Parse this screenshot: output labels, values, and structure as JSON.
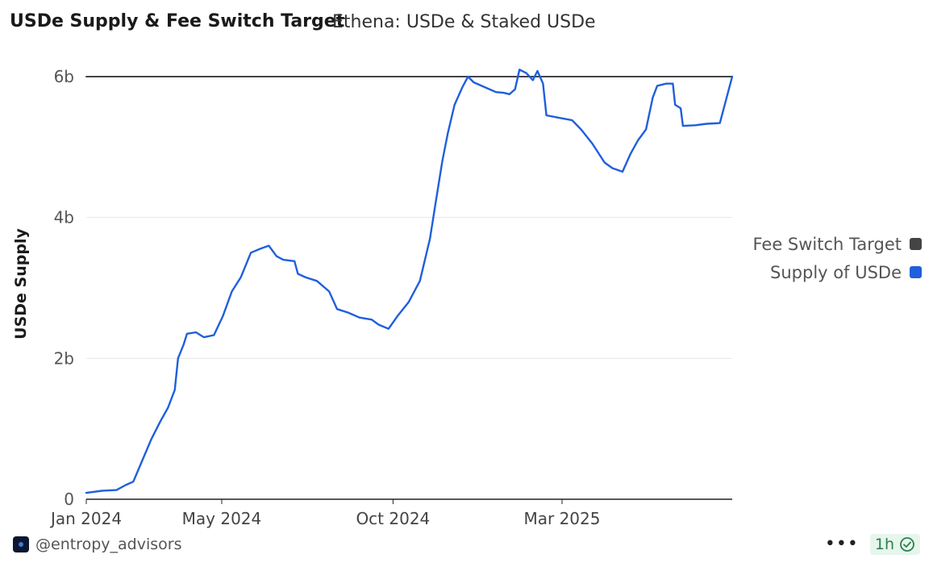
{
  "header": {
    "title": "USDe Supply & Fee Switch Target",
    "subtitle": "Ethena: USDe & Staked USDe"
  },
  "footer": {
    "author": "@entropy_advisors",
    "more_label": "•••",
    "refresh_badge": "1h"
  },
  "colors": {
    "supply": "#1f5fdc",
    "target": "#444444",
    "badge_bg": "#e6f6ec",
    "badge_text": "#2e7d4f"
  },
  "chart_data": {
    "type": "line",
    "ylabel": "USDe Supply",
    "xlabel": "",
    "ylim": [
      0,
      6.0
    ],
    "y_ticks": [
      "0",
      "2b",
      "4b",
      "6b"
    ],
    "y_tick_values": [
      0,
      2,
      4,
      6
    ],
    "x_ticks": [
      "Jan 2024",
      "May 2024",
      "Oct 2024",
      "Mar 2025"
    ],
    "x_tick_dates": [
      "2024-01-01",
      "2024-05-01",
      "2024-10-01",
      "2025-03-01"
    ],
    "x_range": [
      "2024-01-01",
      "2025-07-31"
    ],
    "grid": true,
    "legend_position": "right",
    "series": [
      {
        "name": "Fee Switch Target",
        "color": "#444444",
        "points": [
          [
            "2024-01-01",
            6.0
          ],
          [
            "2025-07-31",
            6.0
          ]
        ]
      },
      {
        "name": "Supply of USDe",
        "color": "#1f5fdc",
        "points": [
          [
            "2024-01-01",
            0.09
          ],
          [
            "2024-01-15",
            0.12
          ],
          [
            "2024-01-28",
            0.13
          ],
          [
            "2024-02-05",
            0.2
          ],
          [
            "2024-02-12",
            0.25
          ],
          [
            "2024-02-20",
            0.55
          ],
          [
            "2024-02-28",
            0.85
          ],
          [
            "2024-03-07",
            1.1
          ],
          [
            "2024-03-14",
            1.3
          ],
          [
            "2024-03-20",
            1.55
          ],
          [
            "2024-03-23",
            2.0
          ],
          [
            "2024-03-28",
            2.2
          ],
          [
            "2024-03-31",
            2.35
          ],
          [
            "2024-04-08",
            2.37
          ],
          [
            "2024-04-15",
            2.3
          ],
          [
            "2024-04-24",
            2.33
          ],
          [
            "2024-05-02",
            2.6
          ],
          [
            "2024-05-10",
            2.95
          ],
          [
            "2024-05-18",
            3.15
          ],
          [
            "2024-05-27",
            3.5
          ],
          [
            "2024-06-05",
            3.56
          ],
          [
            "2024-06-12",
            3.6
          ],
          [
            "2024-06-19",
            3.45
          ],
          [
            "2024-06-25",
            3.4
          ],
          [
            "2024-07-05",
            3.38
          ],
          [
            "2024-07-08",
            3.2
          ],
          [
            "2024-07-15",
            3.15
          ],
          [
            "2024-07-25",
            3.1
          ],
          [
            "2024-08-05",
            2.95
          ],
          [
            "2024-08-12",
            2.7
          ],
          [
            "2024-08-22",
            2.65
          ],
          [
            "2024-09-01",
            2.58
          ],
          [
            "2024-09-12",
            2.55
          ],
          [
            "2024-09-18",
            2.48
          ],
          [
            "2024-09-27",
            2.42
          ],
          [
            "2024-10-05",
            2.6
          ],
          [
            "2024-10-15",
            2.8
          ],
          [
            "2024-10-25",
            3.1
          ],
          [
            "2024-11-03",
            3.7
          ],
          [
            "2024-11-08",
            4.2
          ],
          [
            "2024-11-14",
            4.8
          ],
          [
            "2024-11-19",
            5.2
          ],
          [
            "2024-11-25",
            5.6
          ],
          [
            "2024-12-02",
            5.85
          ],
          [
            "2024-12-07",
            6.0
          ],
          [
            "2024-12-12",
            5.92
          ],
          [
            "2024-12-22",
            5.85
          ],
          [
            "2025-01-01",
            5.78
          ],
          [
            "2025-01-08",
            5.77
          ],
          [
            "2025-01-13",
            5.75
          ],
          [
            "2025-01-18",
            5.82
          ],
          [
            "2025-01-22",
            6.1
          ],
          [
            "2025-01-28",
            6.05
          ],
          [
            "2025-02-03",
            5.95
          ],
          [
            "2025-02-07",
            6.08
          ],
          [
            "2025-02-12",
            5.9
          ],
          [
            "2025-02-15",
            5.45
          ],
          [
            "2025-02-25",
            5.42
          ],
          [
            "2025-03-10",
            5.38
          ],
          [
            "2025-03-18",
            5.25
          ],
          [
            "2025-03-28",
            5.05
          ],
          [
            "2025-04-08",
            4.78
          ],
          [
            "2025-04-15",
            4.7
          ],
          [
            "2025-04-24",
            4.65
          ],
          [
            "2025-05-01",
            4.9
          ],
          [
            "2025-05-08",
            5.1
          ],
          [
            "2025-05-15",
            5.25
          ],
          [
            "2025-05-21",
            5.7
          ],
          [
            "2025-05-25",
            5.87
          ],
          [
            "2025-06-02",
            5.9
          ],
          [
            "2025-06-08",
            5.9
          ],
          [
            "2025-06-10",
            5.6
          ],
          [
            "2025-06-15",
            5.55
          ],
          [
            "2025-06-17",
            5.3
          ],
          [
            "2025-06-28",
            5.31
          ],
          [
            "2025-07-08",
            5.33
          ],
          [
            "2025-07-20",
            5.34
          ],
          [
            "2025-07-31",
            6.0
          ]
        ]
      }
    ]
  }
}
